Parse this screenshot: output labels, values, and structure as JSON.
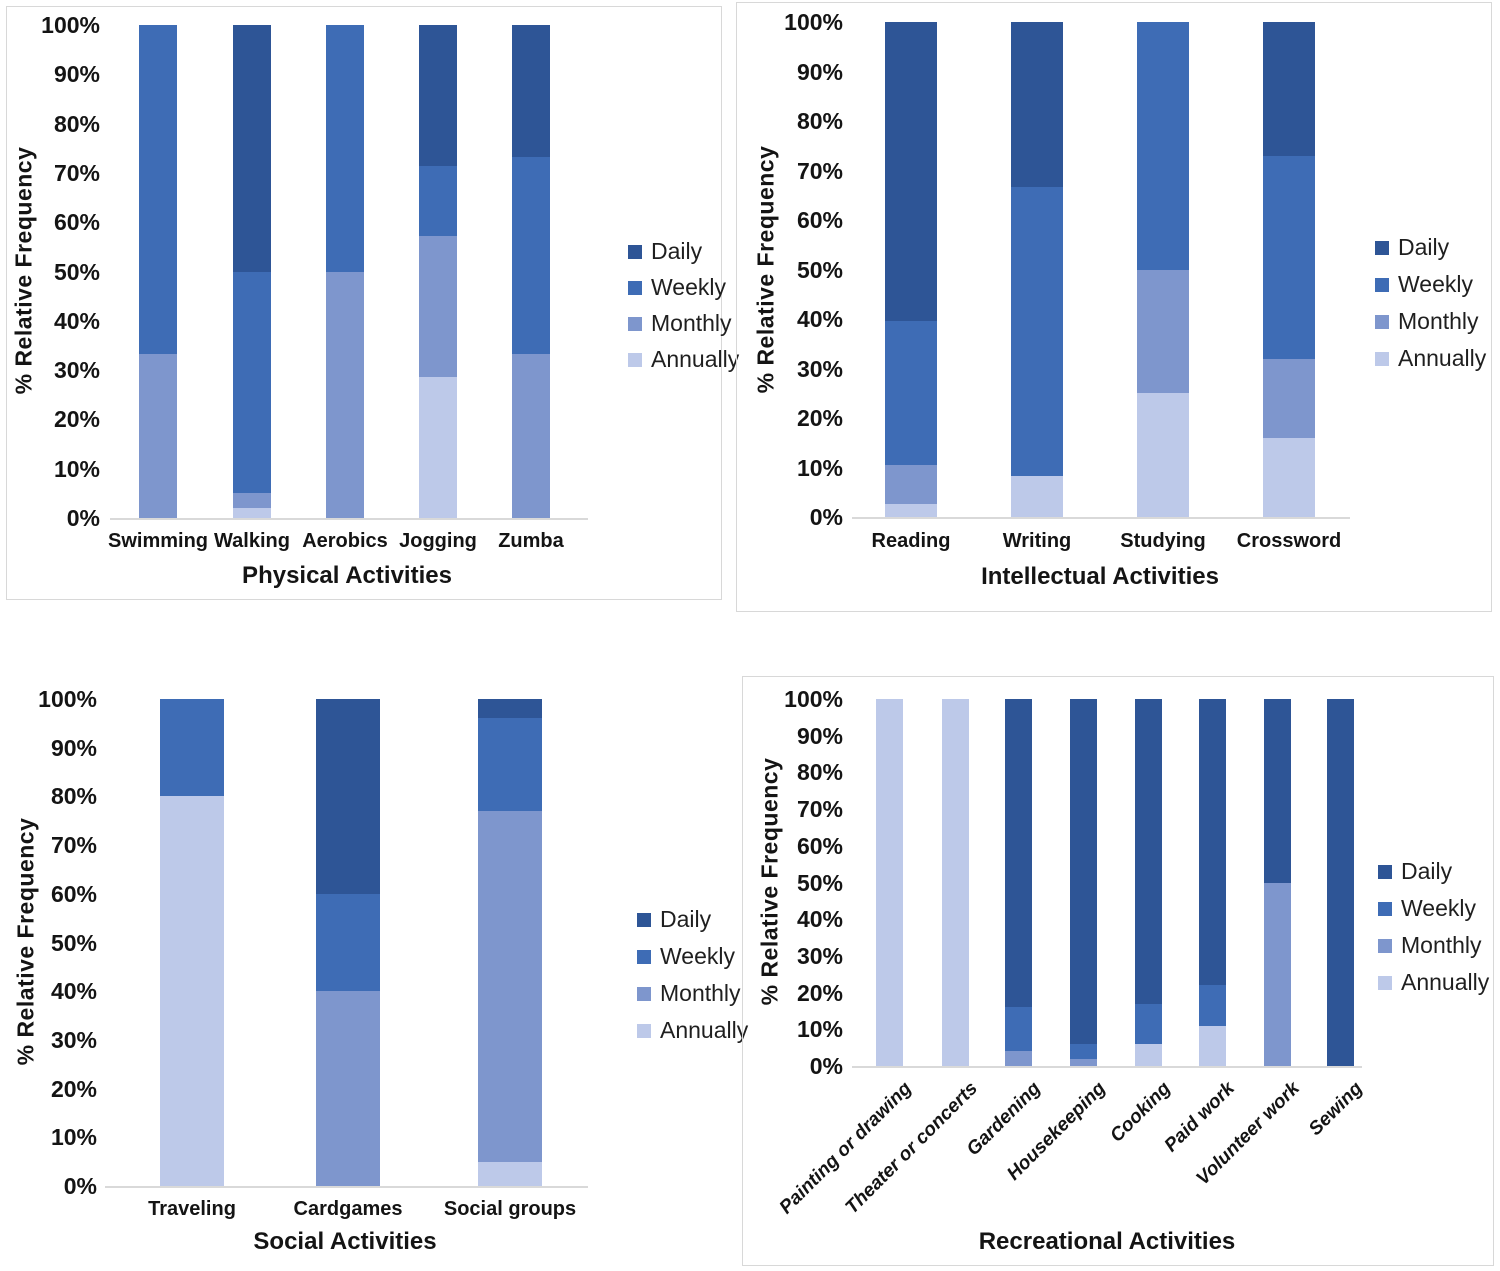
{
  "colors": {
    "Daily": "#2E5596",
    "Weekly": "#3E6CB5",
    "Monthly": "#7E96CD",
    "Annually": "#BDC9E9",
    "axis_line": "#d9d9d9",
    "text": "#141414"
  },
  "legend": {
    "items": [
      "Daily",
      "Weekly",
      "Monthly",
      "Annually"
    ]
  },
  "y_axis": {
    "title": "% Relative Frequency",
    "tick_labels": [
      "0%",
      "10%",
      "20%",
      "30%",
      "40%",
      "50%",
      "60%",
      "70%",
      "80%",
      "90%",
      "100%"
    ],
    "min": 0,
    "max": 100
  },
  "chart_data": [
    {
      "id": "physical",
      "type": "bar",
      "subtype": "stacked-100",
      "title": "Physical Activities",
      "ylabel": "% Relative Frequency",
      "ylim": [
        0,
        100
      ],
      "legend_position": "right",
      "grid": false,
      "categories": [
        "Swimming",
        "Walking",
        "Aerobics",
        "Jogging",
        "Zumba"
      ],
      "series": [
        {
          "name": "Annually",
          "values": [
            0,
            2,
            0,
            28.6,
            0
          ]
        },
        {
          "name": "Monthly",
          "values": [
            33.3,
            3,
            50,
            28.5,
            33.3
          ]
        },
        {
          "name": "Weekly",
          "values": [
            66.7,
            45,
            50,
            14.3,
            40
          ]
        },
        {
          "name": "Daily",
          "values": [
            0,
            50,
            0,
            28.6,
            26.7
          ]
        }
      ]
    },
    {
      "id": "intellectual",
      "type": "bar",
      "subtype": "stacked-100",
      "title": "Intellectual Activities",
      "ylabel": "% Relative Frequency",
      "ylim": [
        0,
        100
      ],
      "legend_position": "right",
      "grid": false,
      "categories": [
        "Reading",
        "Writing",
        "Studying",
        "Crossword"
      ],
      "series": [
        {
          "name": "Annually",
          "values": [
            2.6,
            8.3,
            25,
            16
          ]
        },
        {
          "name": "Monthly",
          "values": [
            7.9,
            0,
            25,
            16
          ]
        },
        {
          "name": "Weekly",
          "values": [
            29,
            58.4,
            50,
            41
          ]
        },
        {
          "name": "Daily",
          "values": [
            60.5,
            33.3,
            0,
            27
          ]
        }
      ]
    },
    {
      "id": "social",
      "type": "bar",
      "subtype": "stacked-100",
      "title": "Social Activities",
      "ylabel": "% Relative Frequency",
      "ylim": [
        0,
        100
      ],
      "legend_position": "right",
      "grid": false,
      "categories": [
        "Traveling",
        "Cardgames",
        "Social groups"
      ],
      "series": [
        {
          "name": "Annually",
          "values": [
            80,
            0,
            5
          ]
        },
        {
          "name": "Monthly",
          "values": [
            0,
            40,
            72
          ]
        },
        {
          "name": "Weekly",
          "values": [
            20,
            20,
            19
          ]
        },
        {
          "name": "Daily",
          "values": [
            0,
            40,
            4
          ]
        }
      ]
    },
    {
      "id": "recreational",
      "type": "bar",
      "subtype": "stacked-100",
      "title": "Recreational Activities",
      "ylabel": "% Relative Frequency",
      "ylim": [
        0,
        100
      ],
      "legend_position": "right",
      "grid": false,
      "categories": [
        "Painting or drawing",
        "Theater or concerts",
        "Gardening",
        "Housekeeping",
        "Cooking",
        "Paid work",
        "Volunteer work",
        "Sewing"
      ],
      "series": [
        {
          "name": "Annually",
          "values": [
            100,
            100,
            0,
            0,
            6,
            11,
            0,
            0
          ]
        },
        {
          "name": "Monthly",
          "values": [
            0,
            0,
            4,
            2,
            0,
            0,
            50,
            0
          ]
        },
        {
          "name": "Weekly",
          "values": [
            0,
            0,
            12,
            4,
            11,
            11,
            0,
            0
          ]
        },
        {
          "name": "Daily",
          "values": [
            0,
            0,
            84,
            94,
            83,
            78,
            50,
            100
          ]
        }
      ]
    }
  ]
}
